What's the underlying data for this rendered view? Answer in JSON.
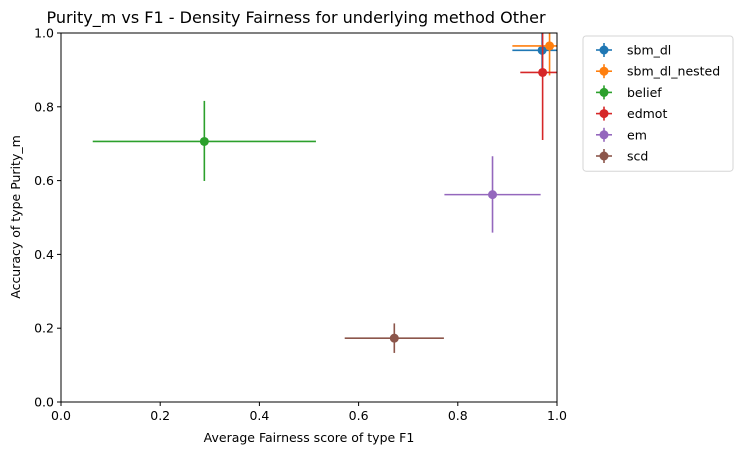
{
  "chart_data": {
    "type": "scatter",
    "title": "Purity_m vs F1 - Density Fairness for underlying method Other",
    "xlabel": "Average Fairness score of type F1",
    "ylabel": "Accuracy of type Purity_m",
    "xlim": [
      0.0,
      1.0
    ],
    "ylim": [
      0.0,
      1.0
    ],
    "xticks": [
      "0.0",
      "0.2",
      "0.4",
      "0.6",
      "0.8",
      "1.0"
    ],
    "yticks": [
      "0.0",
      "0.2",
      "0.4",
      "0.6",
      "0.8",
      "1.0"
    ],
    "grid": false,
    "legend_position": "outside-right-top",
    "series": [
      {
        "name": "sbm_dl",
        "color": "#1f77b4",
        "x": 0.97,
        "y": 0.953,
        "xerr": [
          0.06,
          0.03
        ],
        "yerr": [
          0.07,
          0.047
        ]
      },
      {
        "name": "sbm_dl_nested",
        "color": "#ff7f0e",
        "x": 0.985,
        "y": 0.965,
        "xerr": [
          0.075,
          0.015
        ],
        "yerr": [
          0.08,
          0.035
        ]
      },
      {
        "name": "belief",
        "color": "#2ca02c",
        "x": 0.289,
        "y": 0.706,
        "xerr": [
          0.225,
          0.225
        ],
        "yerr": [
          0.107,
          0.11
        ]
      },
      {
        "name": "edmot",
        "color": "#d62728",
        "x": 0.971,
        "y": 0.893,
        "xerr": [
          0.045,
          0.029
        ],
        "yerr": [
          0.183,
          0.107
        ]
      },
      {
        "name": "em",
        "color": "#9467bd",
        "x": 0.87,
        "y": 0.562,
        "xerr": [
          0.097,
          0.097
        ],
        "yerr": [
          0.103,
          0.104
        ]
      },
      {
        "name": "scd",
        "color": "#8c564b",
        "x": 0.672,
        "y": 0.173,
        "xerr": [
          0.1,
          0.1
        ],
        "yerr": [
          0.04,
          0.04
        ]
      }
    ]
  }
}
